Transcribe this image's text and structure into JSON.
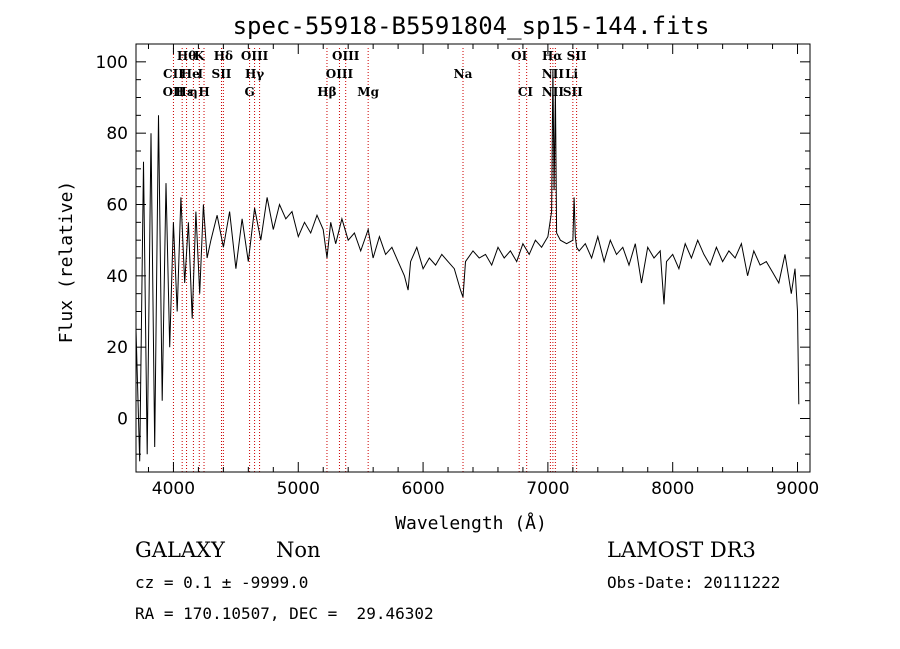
{
  "chart_data": {
    "type": "line",
    "title": "spec-55918-B5591804_sp15-144.fits",
    "xlabel": "Wavelength (Å)",
    "ylabel": "Flux (relative)",
    "xlim": [
      3700,
      9100
    ],
    "ylim": [
      -15,
      105
    ],
    "xticks": [
      4000,
      5000,
      6000,
      7000,
      8000,
      9000
    ],
    "yticks": [
      0,
      20,
      40,
      60,
      80,
      100
    ],
    "series": [
      {
        "name": "flux",
        "color": "#000000",
        "x": [
          3700,
          3730,
          3760,
          3790,
          3820,
          3850,
          3880,
          3910,
          3940,
          3970,
          4000,
          4030,
          4060,
          4090,
          4120,
          4150,
          4180,
          4210,
          4240,
          4270,
          4300,
          4350,
          4400,
          4450,
          4500,
          4550,
          4600,
          4650,
          4700,
          4750,
          4800,
          4850,
          4900,
          4950,
          5000,
          5050,
          5100,
          5150,
          5200,
          5230,
          5260,
          5300,
          5350,
          5400,
          5450,
          5500,
          5560,
          5600,
          5650,
          5700,
          5750,
          5800,
          5850,
          5880,
          5900,
          5950,
          6000,
          6050,
          6100,
          6150,
          6200,
          6250,
          6300,
          6320,
          6340,
          6400,
          6450,
          6500,
          6550,
          6600,
          6650,
          6700,
          6750,
          6800,
          6850,
          6900,
          6950,
          7000,
          7030,
          7040,
          7050,
          7060,
          7070,
          7100,
          7150,
          7200,
          7210,
          7220,
          7230,
          7250,
          7300,
          7350,
          7400,
          7450,
          7500,
          7550,
          7600,
          7650,
          7700,
          7750,
          7800,
          7850,
          7900,
          7930,
          7950,
          8000,
          8050,
          8100,
          8150,
          8200,
          8250,
          8300,
          8350,
          8400,
          8450,
          8500,
          8550,
          8600,
          8650,
          8700,
          8750,
          8800,
          8850,
          8900,
          8950,
          8980,
          9000,
          9010
        ],
        "values": [
          25,
          -12,
          72,
          -10,
          80,
          -8,
          85,
          5,
          66,
          20,
          55,
          30,
          62,
          38,
          55,
          28,
          58,
          35,
          60,
          45,
          50,
          57,
          48,
          58,
          42,
          56,
          44,
          59,
          50,
          62,
          53,
          60,
          56,
          58,
          51,
          55,
          52,
          57,
          53,
          45,
          55,
          49,
          56,
          50,
          52,
          47,
          53,
          45,
          51,
          46,
          48,
          44,
          40,
          36,
          44,
          48,
          42,
          45,
          43,
          46,
          44,
          42,
          36,
          34,
          44,
          47,
          45,
          46,
          43,
          48,
          45,
          47,
          44,
          49,
          46,
          50,
          48,
          51,
          58,
          98,
          64,
          92,
          52,
          50,
          49,
          50,
          62,
          51,
          48,
          47,
          49,
          45,
          51,
          44,
          50,
          46,
          48,
          43,
          49,
          38,
          48,
          45,
          47,
          32,
          44,
          46,
          42,
          49,
          45,
          50,
          46,
          43,
          48,
          44,
          47,
          45,
          49,
          40,
          47,
          43,
          44,
          41,
          38,
          46,
          35,
          42,
          30,
          4
        ]
      }
    ],
    "spectral_lines": [
      {
        "label": "Hθ",
        "x": 4105,
        "row": 1
      },
      {
        "label": "K",
        "x": 4207,
        "row": 1
      },
      {
        "label": "Hδ",
        "x": 4400,
        "row": 1
      },
      {
        "label": "OIII",
        "x": 4650,
        "row": 1
      },
      {
        "label": "OIII",
        "x": 5380,
        "row": 1
      },
      {
        "label": "OI",
        "x": 6770,
        "row": 1
      },
      {
        "label": "Hα",
        "x": 7035,
        "row": 1
      },
      {
        "label": "SII",
        "x": 7230,
        "row": 1
      },
      {
        "label": "CII",
        "x": 4000,
        "row": 2
      },
      {
        "label": "He",
        "x": 4135,
        "row": 2
      },
      {
        "label": "I",
        "x": 4215,
        "row": 2
      },
      {
        "label": "SII",
        "x": 4385,
        "row": 2
      },
      {
        "label": "Hγ",
        "x": 4650,
        "row": 2
      },
      {
        "label": "OIII",
        "x": 5330,
        "row": 2
      },
      {
        "label": "Na",
        "x": 6320,
        "row": 2
      },
      {
        "label": "NII",
        "x": 7040,
        "row": 2
      },
      {
        "label": "Li",
        "x": 7190,
        "row": 2
      },
      {
        "label": "OII",
        "x": 4000,
        "row": 3
      },
      {
        "label": "Hε",
        "x": 4090,
        "row": 3
      },
      {
        "label": "η",
        "x": 4160,
        "row": 3
      },
      {
        "label": "H",
        "x": 4245,
        "row": 3
      },
      {
        "label": "G",
        "x": 4610,
        "row": 3
      },
      {
        "label": "Hβ",
        "x": 5230,
        "row": 3
      },
      {
        "label": "Mg",
        "x": 5560,
        "row": 3
      },
      {
        "label": "CI",
        "x": 6820,
        "row": 3
      },
      {
        "label": "NII",
        "x": 7040,
        "row": 3
      },
      {
        "label": "SII",
        "x": 7200,
        "row": 3
      }
    ],
    "line_markers_x": [
      4000,
      4070,
      4105,
      4160,
      4207,
      4245,
      4385,
      4400,
      4610,
      4650,
      4690,
      5230,
      5330,
      5380,
      5560,
      6320,
      6770,
      6830,
      7020,
      7040,
      7060,
      7200,
      7230
    ],
    "marker_color": "#cc0000"
  },
  "footer": {
    "object_class": "GALAXY",
    "subclass": "Non",
    "survey": "LAMOST DR3",
    "cz": "cz = 0.1 ± -9999.0",
    "obs_date": "Obs-Date: 20111222",
    "coords": "RA = 170.10507, DEC =  29.46302"
  }
}
